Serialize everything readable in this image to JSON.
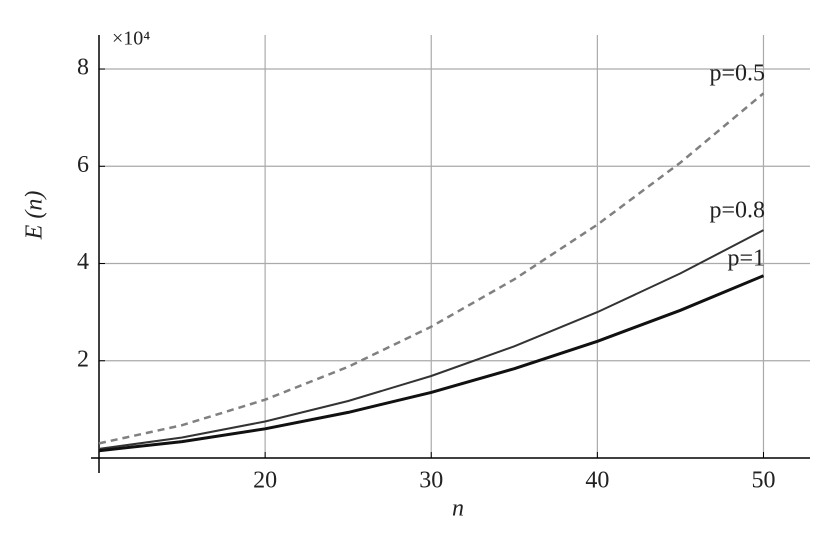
{
  "chart_data": {
    "type": "line",
    "x_label": "n",
    "y_label": "E (n)",
    "y_multiplier": "×10⁴",
    "x": [
      10,
      15,
      20,
      25,
      30,
      35,
      40,
      45,
      50
    ],
    "series": [
      {
        "name": "p=0.5",
        "color": "#808080",
        "dashed": true,
        "values": [
          0.3,
          0.675,
          1.2,
          1.875,
          2.7,
          3.675,
          4.8,
          6.075,
          7.5
        ]
      },
      {
        "name": "p=0.8",
        "color": "#333333",
        "dashed": false,
        "values": [
          0.1875,
          0.4219,
          0.75,
          1.1719,
          1.6875,
          2.2969,
          3.0,
          3.7969,
          4.6875
        ]
      },
      {
        "name": "p=1",
        "color": "#111111",
        "dashed": false,
        "values": [
          0.15,
          0.3375,
          0.6,
          0.9375,
          1.35,
          1.8375,
          2.4,
          3.0375,
          3.75
        ]
      }
    ],
    "xlim": [
      10,
      52.8
    ],
    "ylim": [
      0,
      8.7
    ],
    "xticks": [
      20,
      30,
      40,
      50
    ],
    "yticks": [
      2,
      4,
      6,
      8
    ],
    "grid": true
  }
}
